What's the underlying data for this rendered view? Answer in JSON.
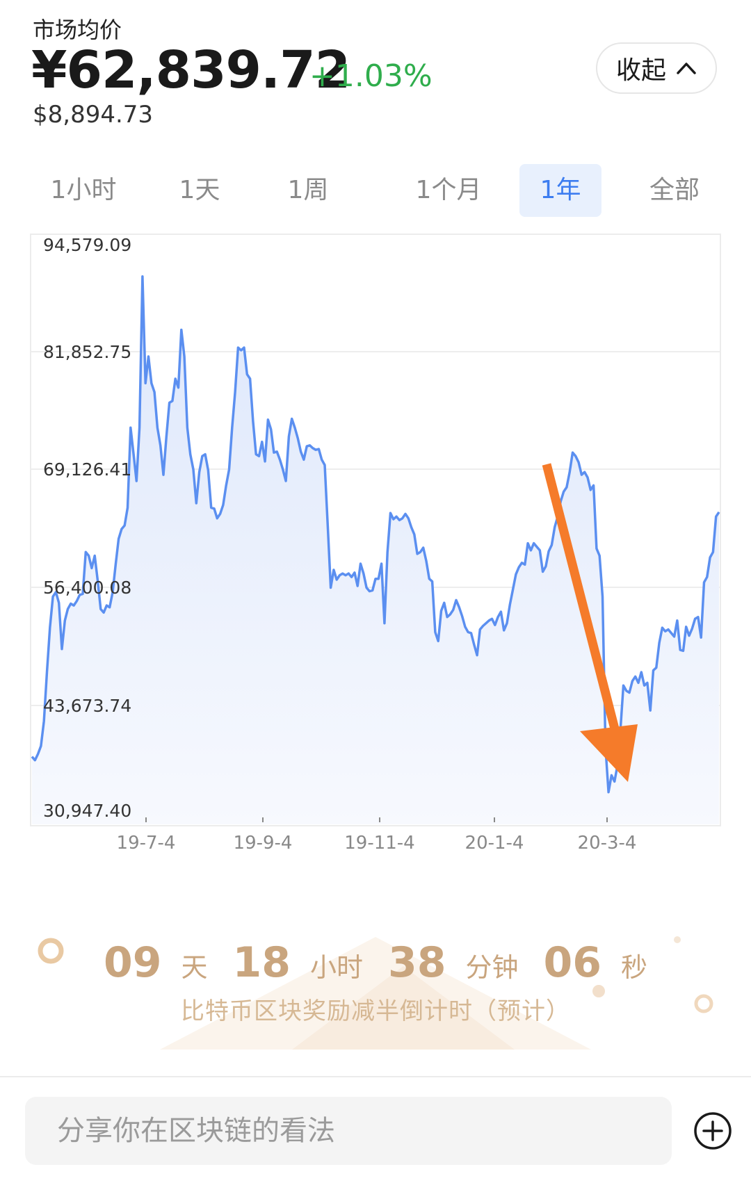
{
  "header": {
    "market_label": "市场均价",
    "price_cny": "¥62,839.72",
    "change_pct": "+1.03%",
    "price_usd": "$8,894.73",
    "collapse_label": "收起",
    "collapse_icon": "chevron-up-icon"
  },
  "tabs": [
    {
      "label": "1小时",
      "active": false
    },
    {
      "label": "1天",
      "active": false
    },
    {
      "label": "1周",
      "active": false
    },
    {
      "label": "1个月",
      "active": false
    },
    {
      "label": "1年",
      "active": true
    },
    {
      "label": "全部",
      "active": false
    }
  ],
  "chart_data": {
    "type": "area",
    "y_ticks": [
      "94,579.09",
      "81,852.75",
      "69,126.41",
      "56,400.08",
      "43,673.74",
      "30,947.40"
    ],
    "ylim": [
      30947.4,
      94579.09
    ],
    "x_ticks": [
      "19-7-4",
      "19-9-4",
      "19-11-4",
      "20-1-4",
      "20-3-4"
    ],
    "grid": true,
    "line_color": "#5b8ff0",
    "annotation": {
      "type": "arrow",
      "color": "#f57b2a",
      "points_to": "2020-03 low"
    },
    "series": [
      {
        "values": [
          37000,
          36600,
          37300,
          38200,
          41000,
          46500,
          51500,
          55000,
          55500,
          54300,
          49100,
          52300,
          53600,
          54200,
          54000,
          54500,
          55200,
          55300,
          60000,
          59600,
          58200,
          59600,
          56800,
          53600,
          53200,
          54000,
          53800,
          55500,
          58600,
          61500,
          62600,
          63000,
          65000,
          74000,
          71000,
          68000,
          74000,
          91000,
          79000,
          82000,
          79000,
          78000,
          74000,
          72000,
          68700,
          73000,
          76800,
          77000,
          79500,
          78500,
          85000,
          82000,
          74000,
          71000,
          69300,
          65500,
          69000,
          70800,
          71000,
          69200,
          65000,
          64900,
          63800,
          64300,
          65300,
          67500,
          69300,
          74000,
          78000,
          83000,
          82700,
          83000,
          80000,
          79500,
          74700,
          71000,
          70800,
          72400,
          70200,
          74900,
          73800,
          71200,
          71300,
          70400,
          69300,
          68000,
          73000,
          75000,
          74000,
          72800,
          71300,
          70400,
          71900,
          72000,
          71700,
          71500,
          71600,
          70400,
          69800,
          63000,
          56000,
          58000,
          56900,
          57400,
          57600,
          57400,
          57600,
          57200,
          57700,
          56200,
          58700,
          57600,
          56000,
          55600,
          55700,
          57000,
          57000,
          58700,
          52000,
          60000,
          64400,
          63700,
          64000,
          63600,
          63800,
          64300,
          63800,
          62800,
          62000,
          59800,
          60000,
          60500,
          59000,
          57000,
          56700,
          51000,
          50000,
          53400,
          54300,
          52700,
          53000,
          53500,
          54600,
          53800,
          52800,
          51600,
          51000,
          50900,
          49600,
          48400,
          51300,
          51700,
          52000,
          52300,
          52500,
          51800,
          52700,
          53300,
          51200,
          52000,
          54100,
          55800,
          57500,
          58300,
          58800,
          58600,
          61000,
          60200,
          61000,
          60600,
          60200,
          57800,
          58400,
          60100,
          60800,
          62800,
          64000,
          65700,
          66800,
          67300,
          69000,
          71200,
          70800,
          70100,
          68700,
          69000,
          68400,
          67000,
          67500,
          60400,
          59600,
          55000,
          38000,
          33000,
          34900,
          34200,
          36000,
          40000,
          45000,
          44400,
          44200,
          45500,
          46000,
          45300,
          46500,
          45000,
          45300,
          42200,
          46700,
          47000,
          49800,
          51500,
          51100,
          51300,
          50900,
          50500,
          52300,
          49000,
          48900,
          51600,
          50600,
          51400,
          52500,
          52700,
          50400,
          56600,
          57200,
          59400,
          60000,
          64000,
          64500
        ]
      }
    ]
  },
  "countdown": {
    "days": "09",
    "days_unit": "天",
    "hours": "18",
    "hours_unit": "小时",
    "minutes": "38",
    "minutes_unit": "分钟",
    "seconds": "06",
    "seconds_unit": "秒",
    "caption": "比特币区块奖励减半倒计时（预计）"
  },
  "comment": {
    "placeholder": "分享你在区块链的看法",
    "add_icon": "plus-circle-icon"
  }
}
